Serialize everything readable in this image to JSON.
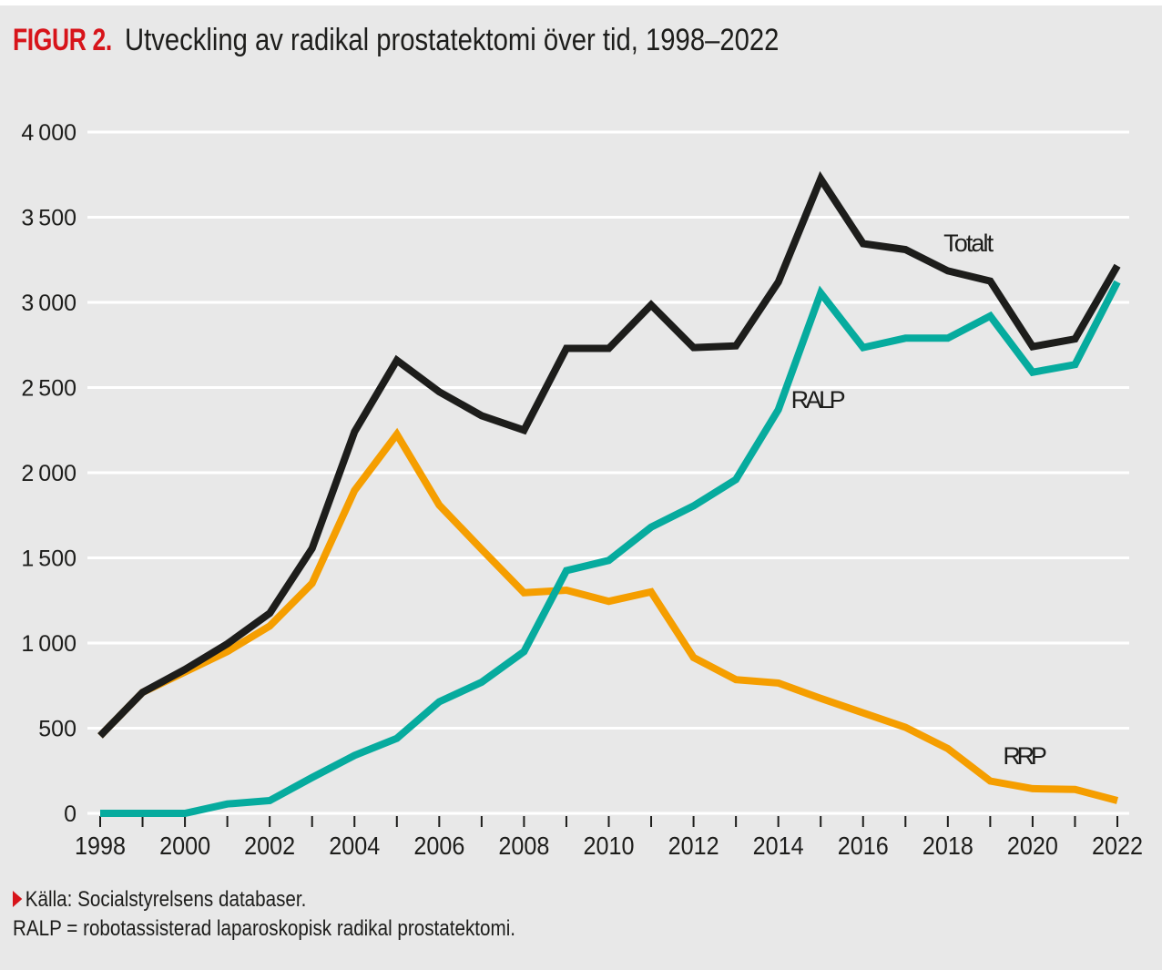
{
  "figure": {
    "label": "FIGUR 2.",
    "title": "Utveckling av radikal prostatektomi över tid, 1998–2022"
  },
  "footer": {
    "source_icon": "triangle-right-icon",
    "source": "Källa: Socialstyrelsens databaser.",
    "note": "RALP = robotassisterad laparoskopisk radikal prostatektomi."
  },
  "colors": {
    "accent": "#d7141a",
    "background": "#e8e8e8",
    "gridline": "#ffffff",
    "text": "#1d1d1b"
  },
  "chart_data": {
    "type": "line",
    "title": "Utveckling av radikal prostatektomi över tid, 1998–2022",
    "xlabel": "",
    "ylabel": "",
    "x": [
      1998,
      1999,
      2000,
      2001,
      2002,
      2003,
      2004,
      2005,
      2006,
      2007,
      2008,
      2009,
      2010,
      2011,
      2012,
      2013,
      2014,
      2015,
      2016,
      2017,
      2018,
      2019,
      2020,
      2021,
      2022
    ],
    "xlim": [
      1998,
      2022
    ],
    "ylim": [
      0,
      4000
    ],
    "x_ticks": [
      1998,
      1999,
      2000,
      2001,
      2002,
      2003,
      2004,
      2005,
      2006,
      2007,
      2008,
      2009,
      2010,
      2011,
      2012,
      2013,
      2014,
      2015,
      2016,
      2017,
      2018,
      2019,
      2020,
      2021,
      2022
    ],
    "x_tick_labels": [
      "1998",
      "2000",
      "2002",
      "2004",
      "2006",
      "2008",
      "2010",
      "2012",
      "2014",
      "2016",
      "2018",
      "2020",
      "2022"
    ],
    "x_tick_label_values": [
      1998,
      2000,
      2002,
      2004,
      2006,
      2008,
      2010,
      2012,
      2014,
      2016,
      2018,
      2020,
      2022
    ],
    "y_ticks": [
      0,
      500,
      1000,
      1500,
      2000,
      2500,
      3000,
      3500,
      4000
    ],
    "y_tick_labels": [
      "0",
      "500",
      "1000",
      "1500",
      "2000",
      "2500",
      "3000",
      "3500",
      "4000"
    ],
    "grid": true,
    "legend": "inline labels",
    "series": [
      {
        "name": "Totalt",
        "color": "#1d1d1b",
        "label_anchor": 2017.9,
        "label_value": 3300,
        "values": [
          455,
          710,
          845,
          995,
          1175,
          1555,
          2240,
          2660,
          2475,
          2335,
          2250,
          2730,
          2730,
          2985,
          2735,
          2745,
          3120,
          3725,
          3345,
          3310,
          3185,
          3125,
          2740,
          2785,
          3215
        ]
      },
      {
        "name": "RALP",
        "color": "#06ab9e",
        "label_anchor": 2014.3,
        "label_value": 2380,
        "values": [
          0,
          0,
          0,
          55,
          75,
          210,
          340,
          440,
          655,
          770,
          950,
          1425,
          1485,
          1680,
          1805,
          1960,
          2370,
          3055,
          2735,
          2790,
          2790,
          2920,
          2590,
          2635,
          3120
        ]
      },
      {
        "name": "RRP",
        "color": "#f59e00",
        "label_anchor": 2019.3,
        "label_value": 290,
        "values": [
          455,
          710,
          830,
          950,
          1100,
          1350,
          1895,
          2225,
          1810,
          1550,
          1295,
          1310,
          1245,
          1300,
          915,
          785,
          765,
          675,
          590,
          505,
          380,
          190,
          145,
          140,
          75
        ]
      }
    ]
  }
}
